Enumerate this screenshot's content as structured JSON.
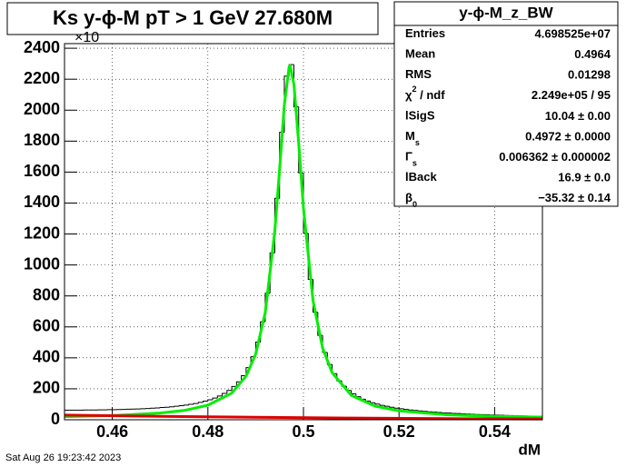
{
  "chart_data": {
    "type": "histogram",
    "title": "Ks y-ϕ-M pT > 1 GeV   27.680M",
    "x_label": "dM",
    "y_multiplier": "×10",
    "date": "Sat Aug 26 19:23:42 2023",
    "xlim": [
      0.45,
      0.55
    ],
    "ylim": [
      0,
      2430
    ],
    "xticks": [
      0.46,
      0.48,
      0.5,
      0.52,
      0.54
    ],
    "yticks": [
      0,
      200,
      400,
      600,
      800,
      1000,
      1200,
      1400,
      1600,
      1800,
      2000,
      2200,
      2400
    ],
    "grid": true,
    "color": "#000000",
    "bins": [
      0.45,
      0.451,
      0.452,
      0.453,
      0.454,
      0.455,
      0.456,
      0.457,
      0.458,
      0.459,
      0.46,
      0.461,
      0.462,
      0.463,
      0.464,
      0.465,
      0.466,
      0.467,
      0.468,
      0.469,
      0.47,
      0.471,
      0.472,
      0.473,
      0.474,
      0.475,
      0.476,
      0.477,
      0.478,
      0.479,
      0.48,
      0.481,
      0.482,
      0.483,
      0.484,
      0.485,
      0.486,
      0.487,
      0.488,
      0.489,
      0.49,
      0.491,
      0.492,
      0.493,
      0.494,
      0.495,
      0.496,
      0.497,
      0.498,
      0.499,
      0.5,
      0.501,
      0.502,
      0.503,
      0.504,
      0.505,
      0.506,
      0.507,
      0.508,
      0.509,
      0.51,
      0.511,
      0.512,
      0.513,
      0.514,
      0.515,
      0.516,
      0.517,
      0.518,
      0.519,
      0.52,
      0.521,
      0.522,
      0.523,
      0.524,
      0.525,
      0.526,
      0.527,
      0.528,
      0.529,
      0.53,
      0.531,
      0.532,
      0.533,
      0.534,
      0.535,
      0.536,
      0.537,
      0.538,
      0.539,
      0.54,
      0.541,
      0.542,
      0.543,
      0.544,
      0.545,
      0.546,
      0.547,
      0.548,
      0.549,
      0.55
    ],
    "values": [
      62,
      62,
      62,
      62,
      63,
      63,
      63,
      64,
      64,
      65,
      65,
      66,
      67,
      68,
      69,
      70,
      71,
      73,
      75,
      76,
      79,
      81,
      84,
      87,
      91,
      95,
      100,
      105,
      112,
      120,
      129,
      140,
      153,
      170,
      189,
      215,
      245,
      285,
      337,
      407,
      502,
      633,
      817,
      1078,
      1431,
      1857,
      2220,
      2294,
      2021,
      1595,
      1205,
      907,
      695,
      545,
      435,
      357,
      298,
      252,
      217,
      189,
      167,
      149,
      133,
      121,
      110,
      101,
      93,
      87,
      81,
      75,
      71,
      67,
      63,
      60,
      57,
      54,
      51,
      49,
      47,
      45,
      43,
      41,
      40,
      38,
      37,
      35,
      34,
      33,
      32,
      31,
      30,
      29,
      28,
      27,
      26,
      25,
      24,
      23,
      23,
      22
    ],
    "fits": [
      {
        "color": "#00ee00",
        "x": [
          0.45,
          0.46,
          0.47,
          0.475,
          0.48,
          0.485,
          0.488,
          0.49,
          0.492,
          0.494,
          0.495,
          0.496,
          0.497,
          0.4972,
          0.498,
          0.499,
          0.5,
          0.502,
          0.504,
          0.506,
          0.51,
          0.515,
          0.52,
          0.53,
          0.54,
          0.55
        ],
        "values": [
          20,
          27,
          43,
          60,
          94,
          172,
          282,
          424,
          691,
          1217,
          1615,
          2035,
          2280,
          2288,
          2168,
          1789,
          1367,
          770,
          464,
          304,
          158,
          88,
          58,
          32,
          22,
          17
        ]
      },
      {
        "color": "#dd0000",
        "x": [
          0.45,
          0.47,
          0.49,
          0.51,
          0.53,
          0.55
        ],
        "values": [
          30,
          22,
          16,
          11,
          7,
          5
        ]
      }
    ],
    "stats": {
      "title": "y-ϕ-M_z_BW",
      "rows": [
        {
          "label": "Entries",
          "value": "4.698525e+07"
        },
        {
          "label": "Mean",
          "value": "0.4964"
        },
        {
          "label": "RMS",
          "value": "0.01298"
        },
        {
          "label": "χ",
          "sup": "2",
          "rest": " / ndf",
          "value": "2.249e+05 / 95"
        },
        {
          "label": "lSigS",
          "value": "10.04 ± 0.00"
        },
        {
          "label": "M",
          "sub": "s",
          "value": "0.4972 ± 0.0000"
        },
        {
          "label": "Γ",
          "sub": "s",
          "value": "0.006362 ± 0.000002"
        },
        {
          "label": "lBack",
          "value": "16.9 ± 0.0"
        },
        {
          "label": "β",
          "sub": "0",
          "value": "−35.32 ± 0.14"
        }
      ]
    }
  }
}
